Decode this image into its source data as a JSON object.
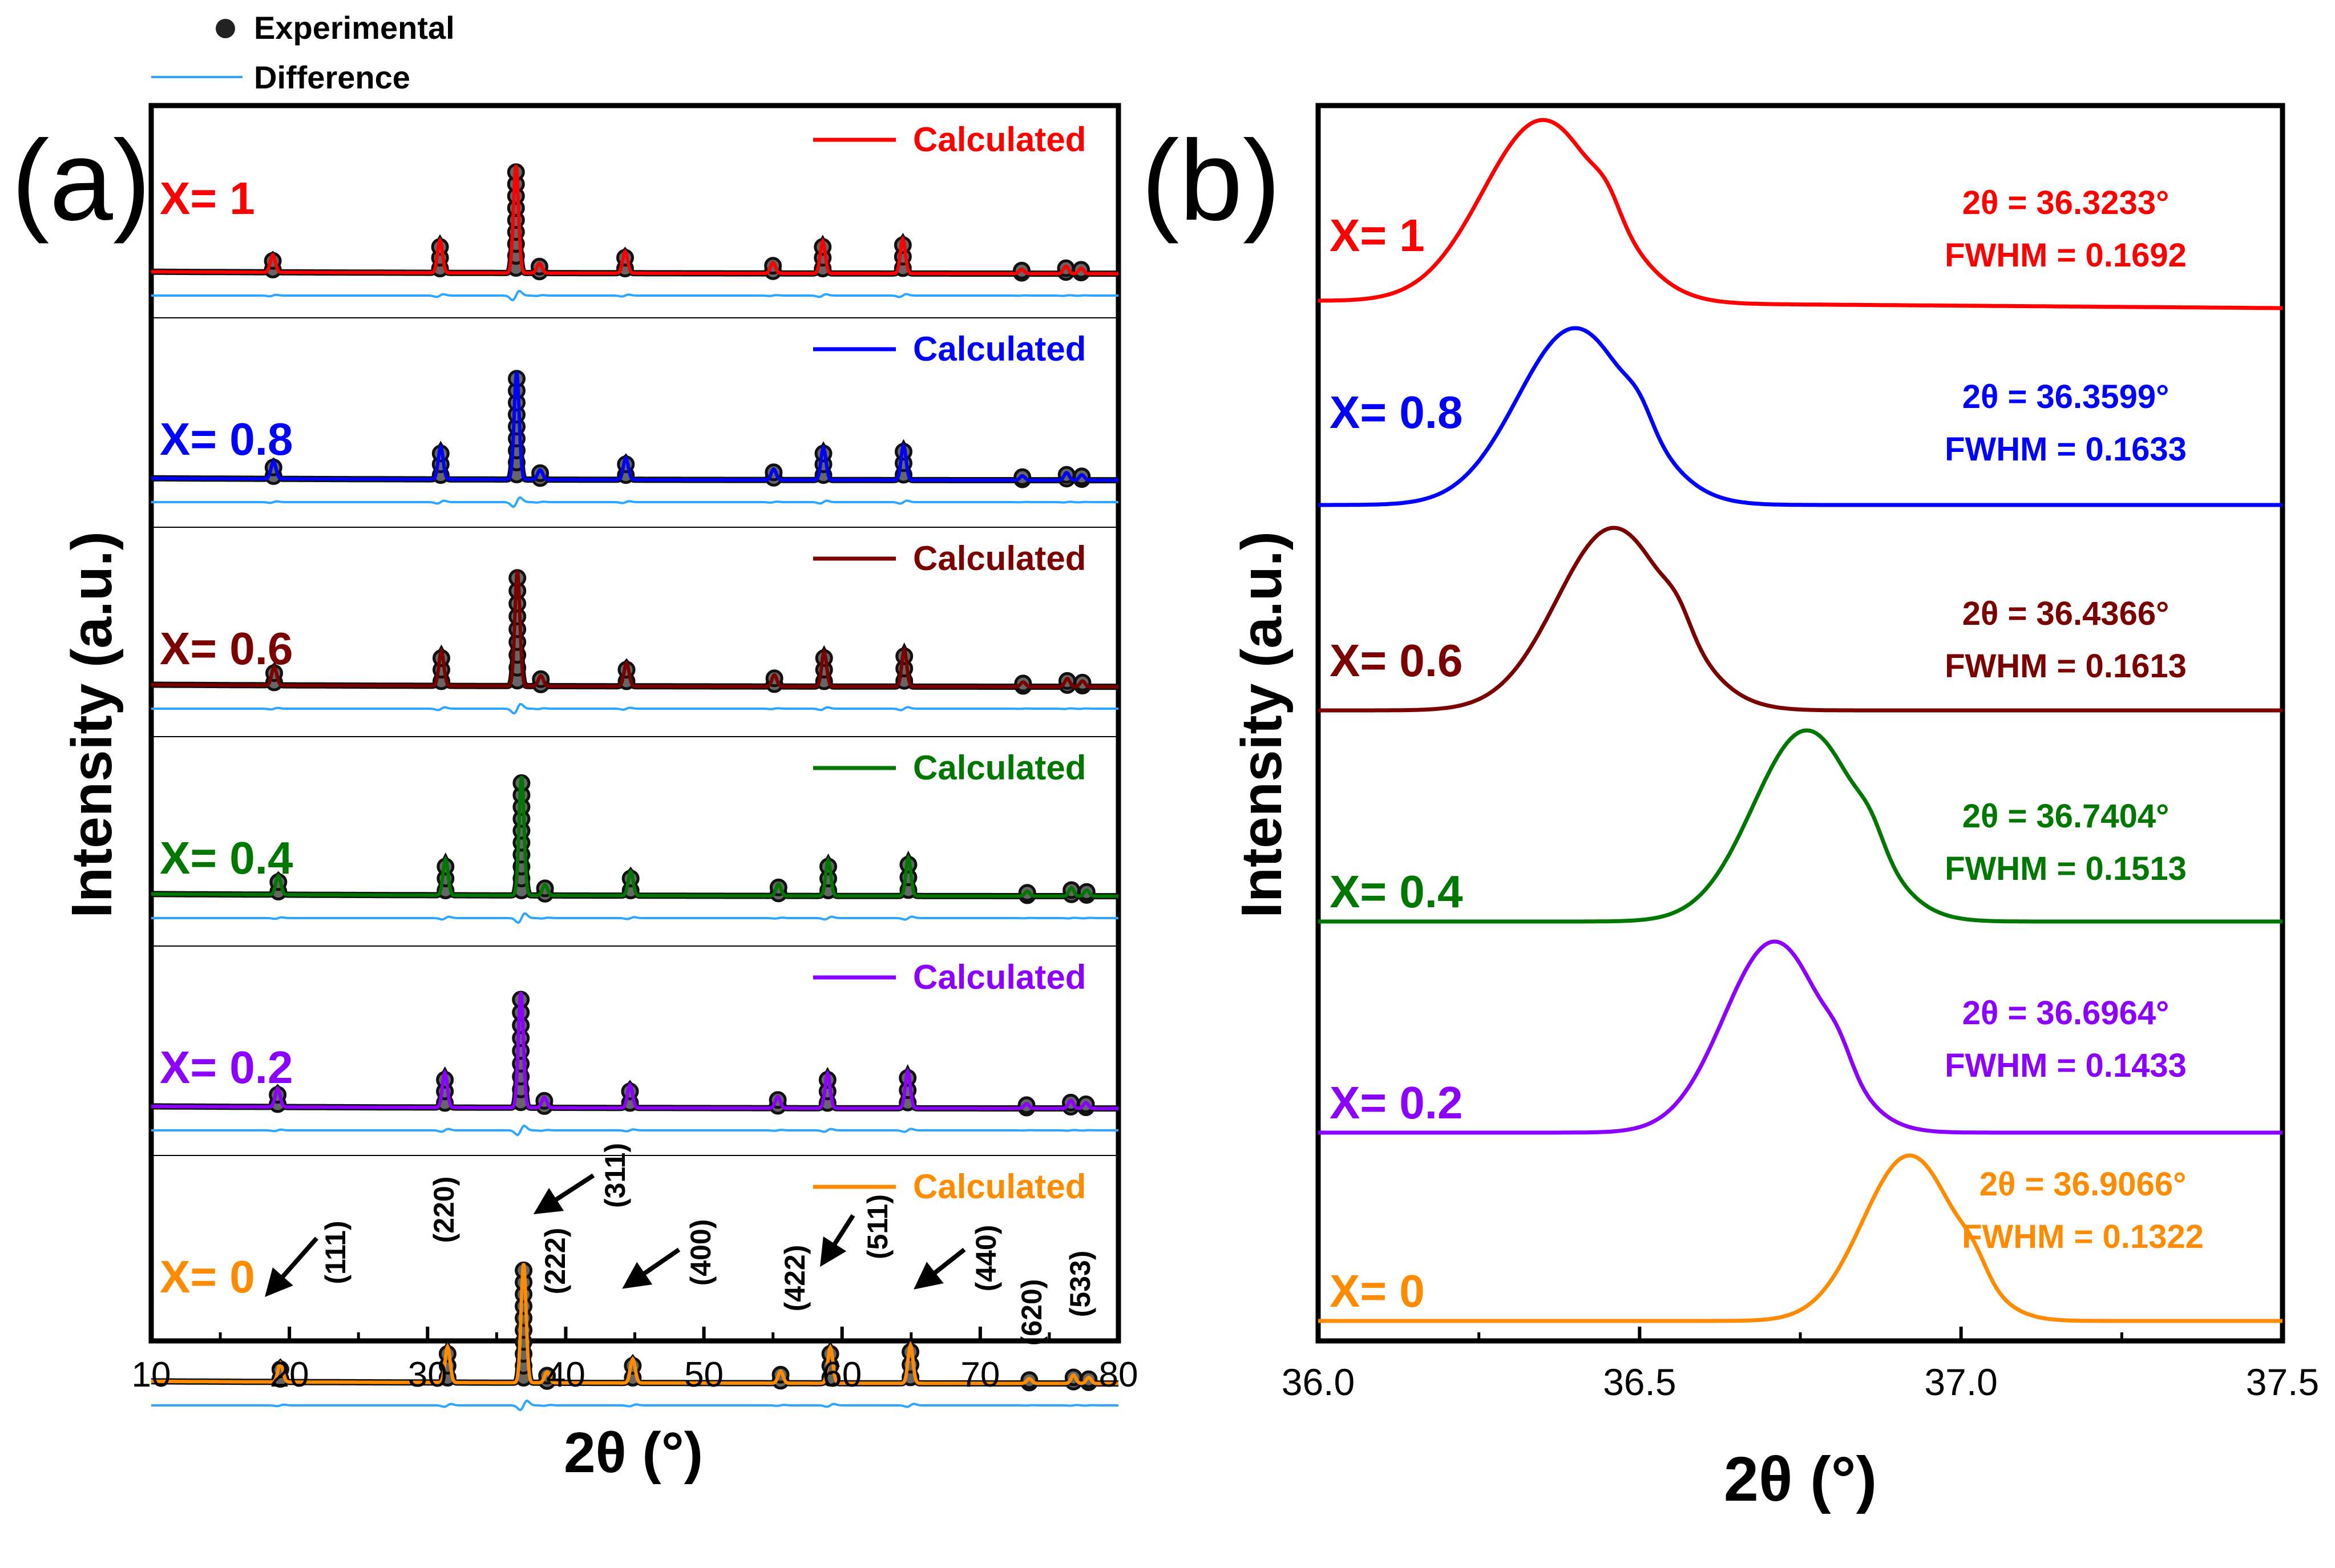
{
  "legend": {
    "experimental_label": "Experimental",
    "difference_label": "Difference",
    "calculated_label": "Calculated"
  },
  "colors": {
    "x1": "#ff0000",
    "x08": "#0000ff",
    "x06": "#7b0000",
    "x04": "#007700",
    "x02": "#8b00ff",
    "x0": "#ff8c00",
    "difference": "#2ea6ff",
    "experimental": "#555555"
  },
  "chart_data": [
    {
      "panel": "(a)",
      "type": "line",
      "title": "",
      "xlabel": "2θ (°)",
      "ylabel": "Intensity (a.u.)",
      "xlim": [
        10,
        80
      ],
      "xticks": [
        10,
        20,
        30,
        40,
        50,
        60,
        70,
        80
      ],
      "peaks": [
        {
          "x": 18.8,
          "rel": 0.16,
          "hkl": "(111)"
        },
        {
          "x": 30.9,
          "rel": 0.3,
          "hkl": "(220)"
        },
        {
          "x": 36.4,
          "rel": 1.0,
          "hkl": "(311)"
        },
        {
          "x": 38.1,
          "rel": 0.09,
          "hkl": "(222)"
        },
        {
          "x": 44.3,
          "rel": 0.2,
          "hkl": "(400)"
        },
        {
          "x": 55.0,
          "rel": 0.1,
          "hkl": "(422)"
        },
        {
          "x": 58.6,
          "rel": 0.3,
          "hkl": "(511)"
        },
        {
          "x": 64.4,
          "rel": 0.32,
          "hkl": "(440)"
        },
        {
          "x": 73.0,
          "rel": 0.04,
          "hkl": "(620)"
        },
        {
          "x": 76.2,
          "rel": 0.07,
          "hkl": "(533)"
        },
        {
          "x": 77.3,
          "rel": 0.05,
          "hkl": ""
        }
      ],
      "series": [
        {
          "name": "X= 1",
          "shift": 0.0,
          "height": 0.28
        },
        {
          "name": "X= 0.8",
          "shift": 0.05,
          "height": 0.28
        },
        {
          "name": "X= 0.6",
          "shift": 0.1,
          "height": 0.3
        },
        {
          "name": "X= 0.4",
          "shift": 0.4,
          "height": 0.31
        },
        {
          "name": "X= 0.2",
          "shift": 0.35,
          "height": 0.3
        },
        {
          "name": "X= 0",
          "shift": 0.55,
          "height": 0.31
        }
      ],
      "annotations": [
        "(111)",
        "(220)",
        "(222)",
        "(311)",
        "(400)",
        "(422)",
        "(511)",
        "(440)",
        "(620)",
        "(533)"
      ]
    },
    {
      "panel": "(b)",
      "type": "line",
      "title": "",
      "xlabel": "2θ (°)",
      "ylabel": "Intensity (a.u.)",
      "xlim": [
        36.0,
        37.5
      ],
      "xticks": [
        "36.0",
        "36.5",
        "37.0",
        "37.5"
      ],
      "series": [
        {
          "name": "X= 1",
          "two_theta_label": "2θ = 36.3233°",
          "fwhm_label": "FWHM = 0.1692",
          "center": 36.35,
          "width": 0.17
        },
        {
          "name": "X= 0.8",
          "two_theta_label": "2θ = 36.3599°",
          "fwhm_label": "FWHM = 0.1633",
          "center": 36.4,
          "width": 0.163
        },
        {
          "name": "X= 0.6",
          "two_theta_label": "2θ = 36.4366°",
          "fwhm_label": "FWHM = 0.1613",
          "center": 36.46,
          "width": 0.161
        },
        {
          "name": "X= 0.4",
          "two_theta_label": "2θ = 36.7404°",
          "fwhm_label": "FWHM = 0.1513",
          "center": 36.76,
          "width": 0.151
        },
        {
          "name": "X= 0.2",
          "two_theta_label": "2θ = 36.6964°",
          "fwhm_label": "FWHM = 0.1433",
          "center": 36.71,
          "width": 0.143
        },
        {
          "name": "X= 0",
          "two_theta_label": "2θ = 36.9066°",
          "fwhm_label": "FWHM = 0.1322",
          "center": 36.92,
          "width": 0.132
        }
      ]
    }
  ]
}
